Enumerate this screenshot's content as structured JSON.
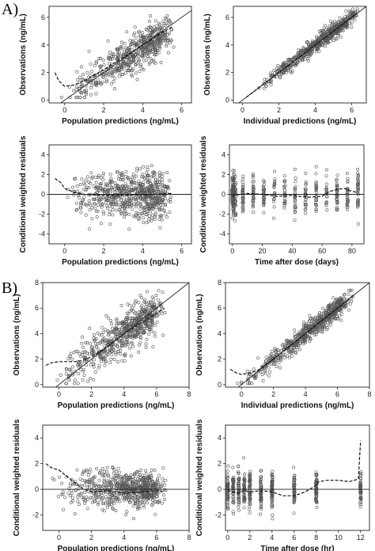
{
  "panel_labels": {
    "a": "A)",
    "b": "B)"
  },
  "chart_data": [
    {
      "id": "A1",
      "type": "scatter",
      "xlabel": "Population predictions (ng/mL)",
      "ylabel": "Observations (ng/mL)",
      "xlim": [
        -0.8,
        6.5
      ],
      "ylim": [
        -0.2,
        6.8
      ],
      "xticks": [
        0,
        2,
        4,
        6
      ],
      "yticks": [
        0,
        2,
        4,
        6
      ],
      "reference": "identity",
      "trend": {
        "x": [
          -0.5,
          -0.3,
          0,
          0.5,
          1,
          2,
          3,
          4,
          5,
          5.5
        ],
        "y": [
          2.0,
          1.4,
          1.0,
          1.1,
          1.4,
          2.2,
          3.1,
          4.0,
          4.9,
          5.3
        ]
      },
      "points": {
        "seed": 11,
        "n": 550,
        "xmin": -0.5,
        "xmax": 5.6,
        "f": "lin",
        "a": 0.25,
        "b": 0.9,
        "noise": 0.7,
        "ymin": 0.2,
        "ymax": 6.6
      }
    },
    {
      "id": "A2",
      "type": "scatter",
      "xlabel": "Individual predictions (ng/mL)",
      "ylabel": "Observations (ng/mL)",
      "xlim": [
        -0.5,
        6.8
      ],
      "ylim": [
        -0.2,
        6.8
      ],
      "xticks": [
        0,
        2,
        4,
        6
      ],
      "yticks": [
        0,
        2,
        4,
        6
      ],
      "reference": "identity",
      "trend": {
        "x": [
          0.2,
          1,
          2,
          3,
          4,
          5,
          6.3
        ],
        "y": [
          0.2,
          1.0,
          2.0,
          3.0,
          4.0,
          5.0,
          6.3
        ]
      },
      "points": {
        "seed": 23,
        "n": 600,
        "xmin": 0.2,
        "xmax": 6.4,
        "f": "lin",
        "a": 0,
        "b": 1,
        "noise": 0.28,
        "ymin": 0.1,
        "ymax": 6.6
      }
    },
    {
      "id": "A3",
      "type": "scatter",
      "xlabel": "Population predictions (ng/mL)",
      "ylabel": "Conditional weighted residuals",
      "xlim": [
        -0.8,
        6.5
      ],
      "ylim": [
        -5,
        5
      ],
      "xticks": [
        0,
        2,
        4,
        6
      ],
      "yticks": [
        -4,
        -2,
        0,
        2,
        4
      ],
      "reference": "zero",
      "trend": {
        "x": [
          -0.5,
          -0.2,
          0,
          0.5,
          1,
          2,
          3,
          4,
          5,
          5.5
        ],
        "y": [
          1.6,
          1.2,
          0.6,
          0.2,
          0.0,
          -0.1,
          -0.1,
          -0.05,
          0.05,
          0.1
        ]
      },
      "points": {
        "seed": 37,
        "n": 650,
        "xmin": -0.5,
        "xmax": 5.6,
        "f": "zero",
        "a": 0,
        "b": 0,
        "noise": 1.5,
        "ymin": -4.3,
        "ymax": 4.6
      }
    },
    {
      "id": "A4",
      "type": "scatter",
      "xlabel": "Time after dose (days)",
      "ylabel": "Conditional weighted residuals",
      "xlim": [
        -2,
        88
      ],
      "ylim": [
        -5,
        5
      ],
      "xticks": [
        0,
        20,
        40,
        60,
        80
      ],
      "yticks": [
        -4,
        -2,
        0,
        2,
        4
      ],
      "reference": "zero",
      "trend": {
        "x": [
          0,
          5,
          10,
          20,
          30,
          40,
          50,
          60,
          65,
          70,
          75,
          80,
          84
        ],
        "y": [
          -0.2,
          0.0,
          0.1,
          0.0,
          -0.2,
          -0.1,
          -0.3,
          -0.2,
          0.3,
          0.5,
          0.6,
          0.3,
          0.2
        ]
      },
      "points": {
        "seed": 41,
        "n": 480,
        "f": "zero",
        "noise": 1.3,
        "ymin": -4.2,
        "ymax": 4.6,
        "times": [
          0,
          0.3,
          0.6,
          1,
          2,
          7,
          14,
          21,
          28,
          35,
          42,
          49,
          56,
          63,
          70,
          77,
          84
        ]
      }
    },
    {
      "id": "B1",
      "type": "scatter",
      "xlabel": "Population predictions (ng/mL)",
      "ylabel": "Observations (ng/mL)",
      "xlim": [
        -1,
        8
      ],
      "ylim": [
        -0.2,
        8
      ],
      "xticks": [
        0,
        2,
        4,
        6,
        8
      ],
      "yticks": [
        0,
        2,
        4,
        6,
        8
      ],
      "reference": "identity",
      "trend": {
        "x": [
          -0.8,
          -0.5,
          0,
          1,
          1.5,
          2,
          3,
          4,
          5,
          6,
          6.5
        ],
        "y": [
          1.5,
          1.7,
          1.8,
          1.8,
          1.9,
          2.2,
          3.0,
          4.0,
          4.8,
          5.6,
          6.0
        ]
      },
      "points": {
        "seed": 53,
        "n": 600,
        "xmin": -0.8,
        "xmax": 6.6,
        "f": "lin",
        "a": 0.6,
        "b": 0.85,
        "noise": 0.85,
        "ymin": 0.1,
        "ymax": 7.4
      }
    },
    {
      "id": "B2",
      "type": "scatter",
      "xlabel": "Individual predictions (ng/mL)",
      "ylabel": "Observations (ng/mL)",
      "xlim": [
        -1,
        8
      ],
      "ylim": [
        -0.2,
        8
      ],
      "xticks": [
        0,
        2,
        4,
        6,
        8
      ],
      "yticks": [
        0,
        2,
        4,
        6,
        8
      ],
      "reference": "identity",
      "trend": {
        "x": [
          -0.7,
          -0.3,
          0,
          0.5,
          1,
          2,
          3,
          4,
          5,
          6,
          7
        ],
        "y": [
          1.2,
          0.9,
          0.8,
          0.9,
          1.1,
          2.0,
          3.0,
          4.0,
          5.0,
          6.0,
          7.0
        ]
      },
      "points": {
        "seed": 61,
        "n": 620,
        "xmin": -0.7,
        "xmax": 7.0,
        "f": "lin",
        "a": 0,
        "b": 1,
        "noise": 0.4,
        "ymin": 0.1,
        "ymax": 7.4
      }
    },
    {
      "id": "B3",
      "type": "scatter",
      "xlabel": "Population predictions (ng/mL)",
      "ylabel": "Conditional weighted residuals",
      "xlim": [
        -1,
        8
      ],
      "ylim": [
        -3.2,
        5
      ],
      "xticks": [
        0,
        2,
        4,
        6,
        8
      ],
      "yticks": [
        -2,
        0,
        2,
        4
      ],
      "reference": "zero",
      "trend": {
        "x": [
          -0.8,
          -0.5,
          0,
          0.5,
          1,
          1.5,
          2,
          3,
          4,
          5,
          6,
          6.5
        ],
        "y": [
          2.0,
          1.7,
          1.5,
          1.0,
          0.5,
          0.0,
          -0.2,
          -0.1,
          -0.3,
          -0.2,
          -0.1,
          -0.2
        ]
      },
      "points": {
        "seed": 71,
        "n": 650,
        "xmin": -0.8,
        "xmax": 6.6,
        "f": "zero",
        "a": 0,
        "b": 0,
        "noise": 0.9,
        "ymin": -2.5,
        "ymax": 3.5
      }
    },
    {
      "id": "B4",
      "type": "scatter",
      "xlabel": "Time after dose (hr)",
      "ylabel": "Conditional weighted residuals",
      "xlim": [
        -0.2,
        12.8
      ],
      "ylim": [
        -3.2,
        5
      ],
      "xticks": [
        0,
        2,
        4,
        6,
        8,
        10,
        12
      ],
      "yticks": [
        -2,
        0,
        2,
        4
      ],
      "reference": "zero",
      "trend": {
        "x": [
          0,
          0.5,
          1,
          1.5,
          2,
          3,
          4,
          5,
          6,
          7,
          8,
          8.2,
          9,
          10,
          11,
          11.8,
          12
        ],
        "y": [
          -0.1,
          -0.2,
          -0.3,
          -0.1,
          -0.2,
          -0.1,
          -0.2,
          -0.5,
          -0.5,
          -0.2,
          0.3,
          0.6,
          0.7,
          0.7,
          0.6,
          0.8,
          3.8
        ]
      },
      "points": {
        "seed": 83,
        "n": 520,
        "f": "zero",
        "noise": 0.9,
        "ymin": -2.8,
        "ymax": 3.3,
        "times": [
          0,
          0.5,
          1,
          1.5,
          2,
          3,
          4,
          6,
          8,
          12
        ]
      }
    }
  ]
}
